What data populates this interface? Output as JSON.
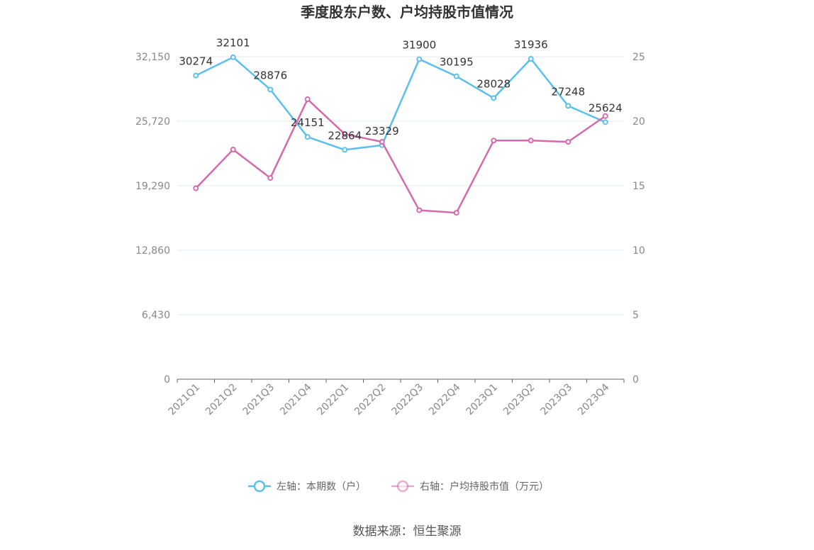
{
  "chart_data": {
    "type": "line",
    "title": "季度股东户数、户均持股市值情况",
    "categories": [
      "2021Q1",
      "2021Q2",
      "2021Q3",
      "2021Q4",
      "2022Q1",
      "2022Q2",
      "2022Q3",
      "2022Q4",
      "2023Q1",
      "2023Q2",
      "2023Q3",
      "2023Q4"
    ],
    "left_axis": {
      "ticks": [
        "0",
        "6,430",
        "12,860",
        "19,290",
        "25,720",
        "32,150"
      ],
      "ylim": [
        0,
        32150
      ]
    },
    "right_axis": {
      "ticks": [
        "0",
        "5",
        "10",
        "15",
        "20",
        "25"
      ],
      "ylim": [
        0,
        25
      ]
    },
    "series": [
      {
        "name": "左轴：本期数（户）",
        "axis": "left",
        "color": "#5bbfee",
        "values": [
          30274,
          32101,
          28876,
          24151,
          22864,
          23329,
          31900,
          30195,
          28028,
          31936,
          27248,
          25624
        ],
        "labels": [
          "30274",
          "32101",
          "28876",
          "24151",
          "22864",
          "23329",
          "31900",
          "30195",
          "28028",
          "31936",
          "27248",
          "25624"
        ]
      },
      {
        "name": "右轴：户均持股市值（万元）",
        "axis": "right",
        "color": "#d46aad",
        "values": [
          14.8,
          17.8,
          15.6,
          21.7,
          19.0,
          18.4,
          13.1,
          12.9,
          18.5,
          18.5,
          18.4,
          20.4
        ]
      }
    ],
    "grid": true,
    "legend_position": "bottom"
  },
  "source_text": "数据来源：恒生聚源"
}
